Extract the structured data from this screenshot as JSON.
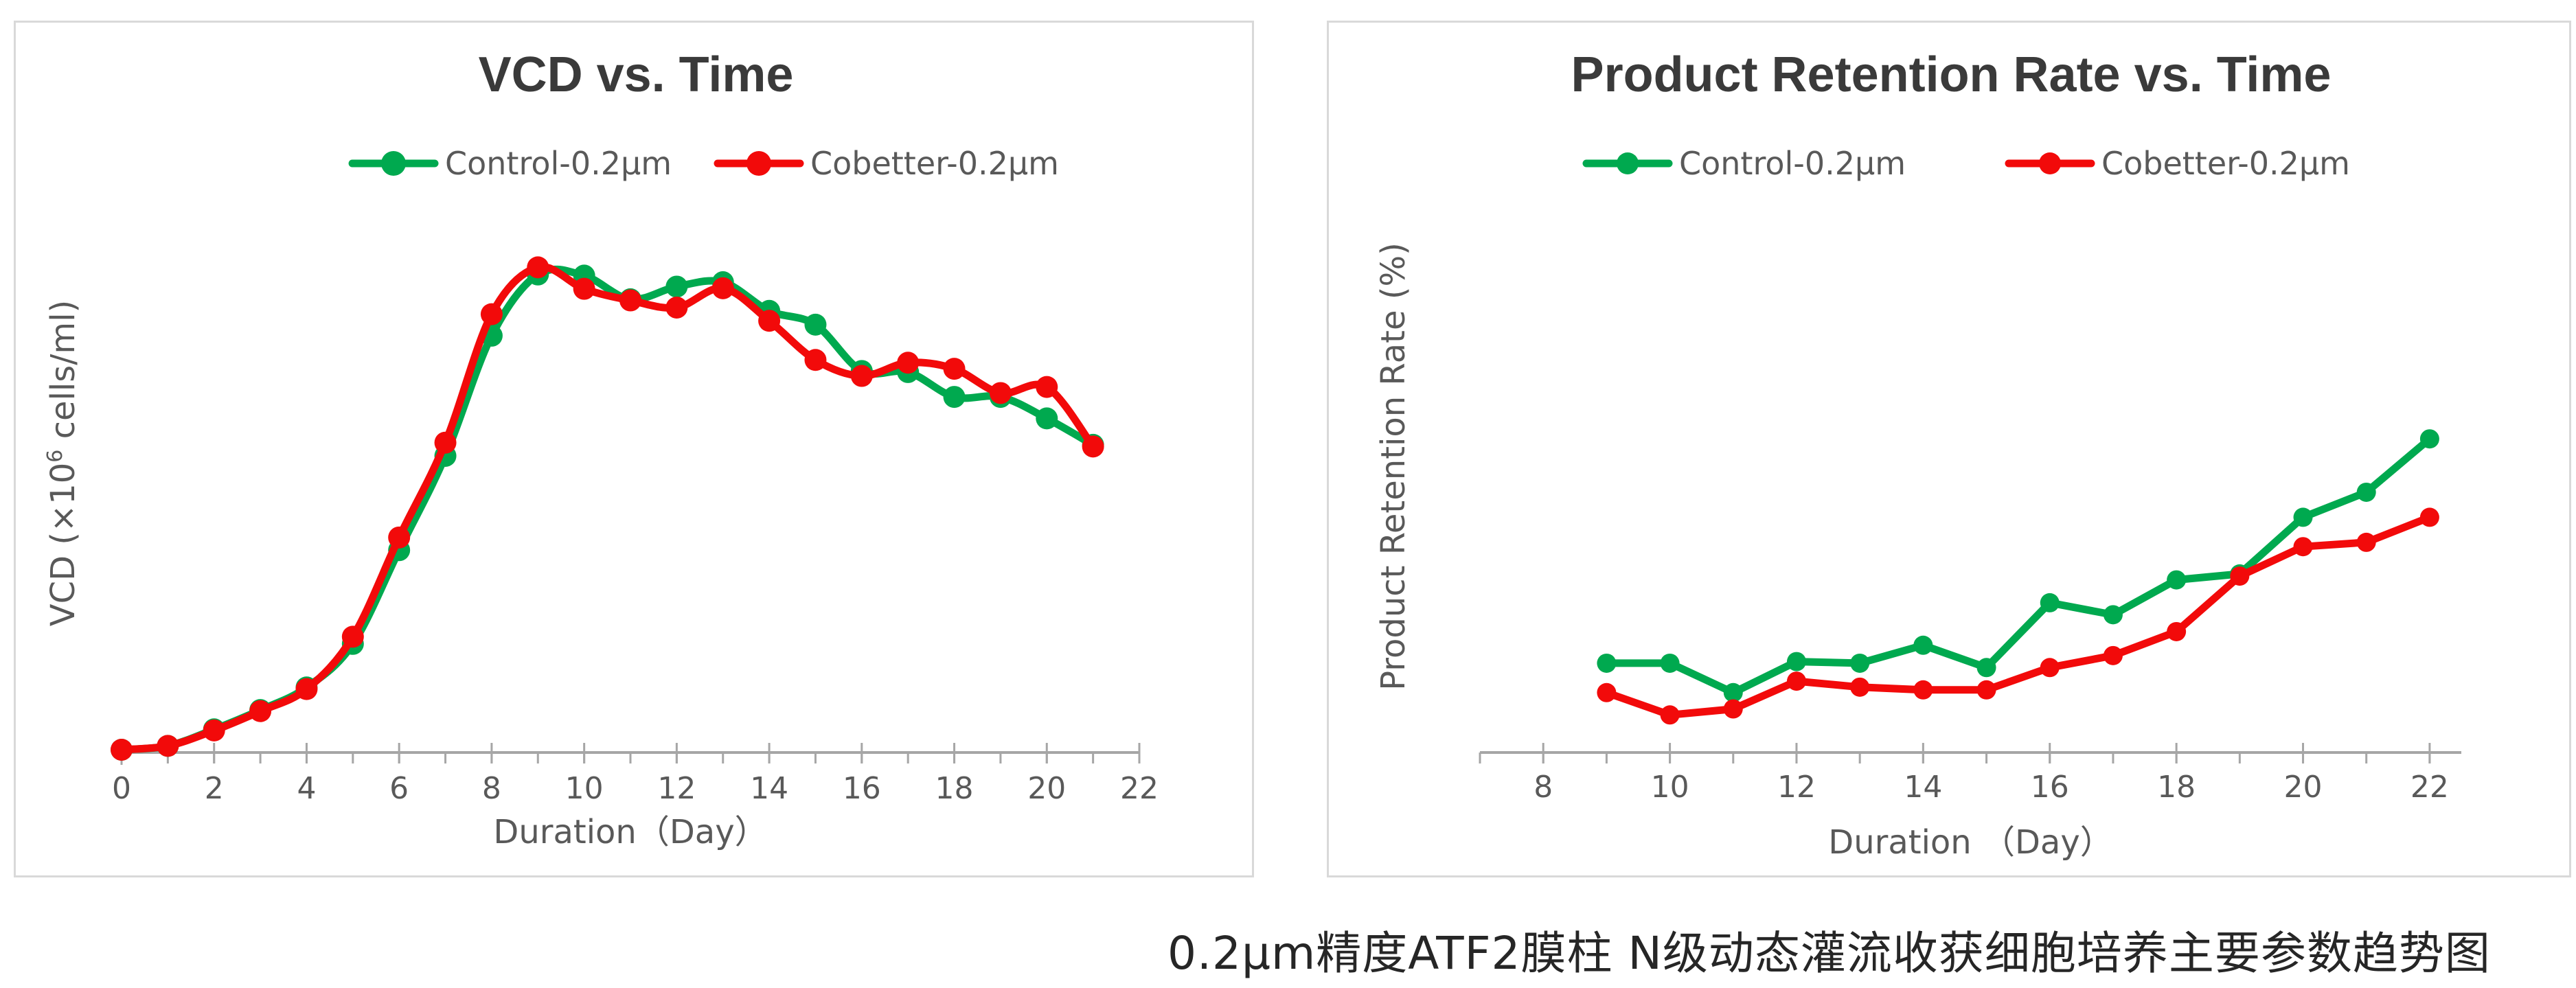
{
  "caption": "0.2μm精度ATF2膜柱 N级动态灌流收获细胞培养主要参数趋势图",
  "chart_data": [
    {
      "type": "line",
      "title": "VCD vs. Time",
      "xlabel": "Duration（Day）",
      "ylabel_parts": [
        "VCD (×10",
        "6",
        " cells/ml)"
      ],
      "xlim": [
        0,
        22
      ],
      "xticks": [
        0,
        2,
        4,
        6,
        8,
        10,
        12,
        14,
        16,
        18,
        20,
        22
      ],
      "ylim": [
        0,
        100
      ],
      "grid": false,
      "legend_position": "top",
      "series": [
        {
          "name": "Control-0.2μm",
          "color": "#00a94f",
          "x": [
            0,
            1,
            2,
            3,
            4,
            5,
            6,
            7,
            8,
            9,
            10,
            11,
            12,
            13,
            14,
            15,
            16,
            17,
            18,
            19,
            20,
            21
          ],
          "y": [
            0.5,
            1.2,
            4.2,
            7.7,
            11.8,
            19.7,
            36.7,
            53.8,
            75.6,
            86.7,
            86.5,
            82.2,
            84.5,
            85.3,
            80.1,
            77.6,
            69.2,
            69.0,
            64.5,
            64.5,
            60.6,
            55.8
          ]
        },
        {
          "name": "Cobetter-0.2μm",
          "color": "#f20a0a",
          "x": [
            0,
            1,
            2,
            3,
            4,
            5,
            6,
            7,
            8,
            9,
            10,
            11,
            12,
            13,
            14,
            15,
            16,
            17,
            18,
            19,
            20,
            21
          ],
          "y": [
            0.5,
            1.2,
            4.0,
            7.5,
            11.5,
            21.0,
            39.0,
            56.2,
            79.5,
            88.0,
            84.1,
            82.0,
            80.7,
            84.2,
            78.3,
            71.2,
            68.3,
            70.7,
            69.6,
            65.2,
            66.3,
            55.5
          ]
        }
      ]
    },
    {
      "type": "line",
      "title": "Product Retention Rate vs. Time",
      "xlabel": "Duration （Day）",
      "ylabel": "Product Retention Rate (%)",
      "xlim": [
        7,
        22.5
      ],
      "xticks": [
        8,
        10,
        12,
        14,
        16,
        18,
        20,
        22
      ],
      "ylim": [
        0,
        100
      ],
      "grid": false,
      "legend_position": "top",
      "series": [
        {
          "name": "Control-0.2μm",
          "color": "#00a94f",
          "x": [
            9,
            10,
            11,
            12,
            13,
            14,
            15,
            16,
            17,
            18,
            19,
            20,
            21,
            22
          ],
          "y": [
            16.4,
            16.4,
            11.0,
            16.7,
            16.4,
            19.7,
            15.6,
            27.5,
            25.3,
            31.7,
            32.8,
            43.2,
            47.8,
            57.6
          ]
        },
        {
          "name": "Cobetter-0.2μm",
          "color": "#f20a0a",
          "x": [
            9,
            10,
            11,
            12,
            13,
            14,
            15,
            16,
            17,
            18,
            19,
            20,
            21,
            22
          ],
          "y": [
            11.0,
            6.9,
            8.0,
            13.1,
            12.0,
            11.5,
            11.5,
            15.6,
            17.8,
            22.2,
            32.4,
            37.8,
            38.6,
            43.2
          ]
        }
      ]
    }
  ]
}
